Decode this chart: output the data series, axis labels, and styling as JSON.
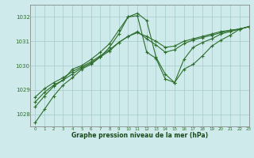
{
  "bg_color": "#ceeaea",
  "grid_color": "#aacece",
  "line_color": "#2d6e2d",
  "marker_color": "#2d6e2d",
  "title": "Graphe pression niveau de la mer (hPa)",
  "title_color": "#1a4a1a",
  "xlim": [
    -0.5,
    23
  ],
  "ylim": [
    1027.5,
    1032.5
  ],
  "yticks": [
    1028,
    1029,
    1030,
    1031,
    1032
  ],
  "xticks": [
    0,
    1,
    2,
    3,
    4,
    5,
    6,
    7,
    8,
    9,
    10,
    11,
    12,
    13,
    14,
    15,
    16,
    17,
    18,
    19,
    20,
    21,
    22,
    23
  ],
  "series1_x": [
    0,
    1,
    2,
    3,
    4,
    5,
    6,
    7,
    8,
    9,
    10,
    11,
    12,
    13,
    14,
    15,
    16,
    17,
    18,
    19,
    20,
    21,
    22,
    23
  ],
  "series1_y": [
    1027.65,
    1028.2,
    1028.75,
    1029.2,
    1029.5,
    1029.85,
    1030.05,
    1030.35,
    1030.75,
    1031.3,
    1032.0,
    1032.15,
    1031.85,
    1030.35,
    1029.65,
    1029.3,
    1029.85,
    1030.05,
    1030.4,
    1030.8,
    1031.05,
    1031.25,
    1031.5,
    1031.6
  ],
  "series2_x": [
    0,
    1,
    2,
    3,
    4,
    5,
    6,
    7,
    8,
    9,
    10,
    11,
    12,
    13,
    14,
    15,
    16,
    17,
    18,
    19,
    20,
    21,
    22,
    23
  ],
  "series2_y": [
    1028.3,
    1028.75,
    1029.15,
    1029.4,
    1029.85,
    1030.0,
    1030.25,
    1030.55,
    1030.9,
    1031.45,
    1032.0,
    1032.05,
    1030.55,
    1030.3,
    1029.45,
    1029.3,
    1030.25,
    1030.75,
    1030.95,
    1031.1,
    1031.3,
    1031.4,
    1031.5,
    1031.6
  ],
  "series3_x": [
    0,
    1,
    2,
    3,
    4,
    5,
    6,
    7,
    8,
    9,
    10,
    11,
    12,
    13,
    14,
    15,
    16,
    17,
    18,
    19,
    20,
    21,
    22,
    23
  ],
  "series3_y": [
    1028.5,
    1028.9,
    1029.2,
    1029.4,
    1029.65,
    1029.9,
    1030.1,
    1030.35,
    1030.6,
    1030.95,
    1031.2,
    1031.4,
    1031.1,
    1030.85,
    1030.55,
    1030.65,
    1030.9,
    1031.05,
    1031.15,
    1031.25,
    1031.35,
    1031.45,
    1031.5,
    1031.6
  ],
  "series4_x": [
    0,
    1,
    2,
    3,
    4,
    5,
    6,
    7,
    8,
    9,
    10,
    11,
    12,
    13,
    14,
    15,
    16,
    17,
    18,
    19,
    20,
    21,
    22,
    23
  ],
  "series4_y": [
    1028.7,
    1029.05,
    1029.3,
    1029.5,
    1029.75,
    1029.95,
    1030.15,
    1030.4,
    1030.65,
    1030.95,
    1031.2,
    1031.35,
    1031.2,
    1031.0,
    1030.75,
    1030.8,
    1031.0,
    1031.1,
    1031.2,
    1031.3,
    1031.4,
    1031.45,
    1031.5,
    1031.6
  ]
}
